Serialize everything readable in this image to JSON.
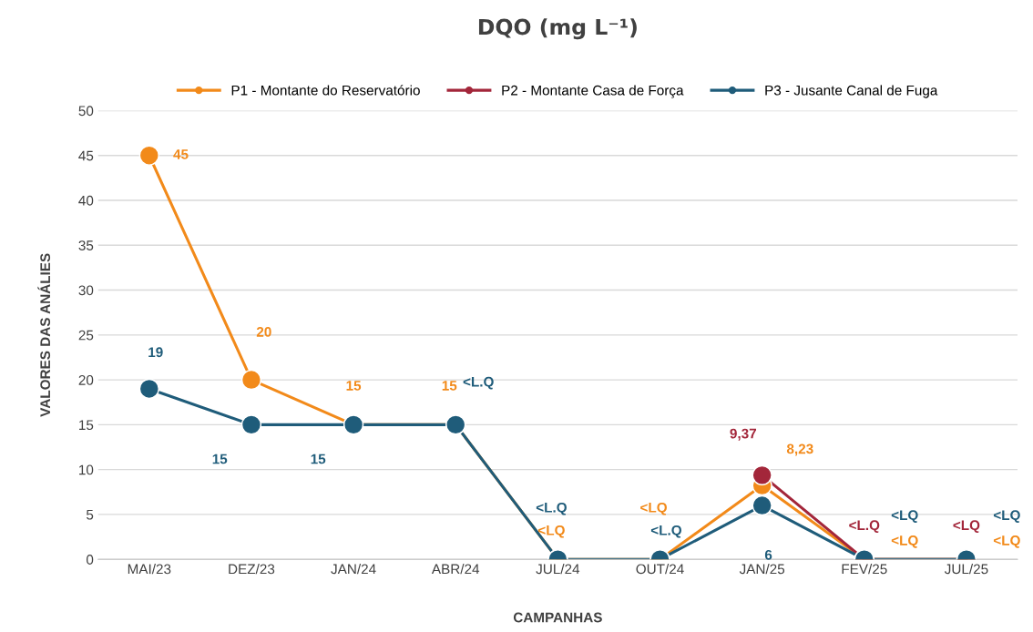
{
  "chart_data": {
    "type": "line",
    "title": "DQO (mg L⁻¹)",
    "xlabel": "CAMPANHAS",
    "ylabel": "VALORES DAS ANÁLIES",
    "categories": [
      "MAI/23",
      "DEZ/23",
      "JAN/24",
      "ABR/24",
      "JUL/24",
      "OUT/24",
      "JAN/25",
      "FEV/25",
      "JUL/25"
    ],
    "series": [
      {
        "name": "P1 - Montante do Reservatório",
        "color": "#f28a1a",
        "values": [
          45,
          20,
          15,
          15,
          0,
          0,
          8.23,
          0,
          0
        ],
        "value_labels": [
          "45",
          "20",
          "15",
          "15",
          "<LQ",
          "<LQ",
          "8,23",
          "<LQ",
          "<LQ"
        ]
      },
      {
        "name": "P2 - Montante Casa de Força",
        "color": "#a3263a",
        "values": [
          null,
          null,
          null,
          null,
          null,
          null,
          9.37,
          0,
          0
        ],
        "value_labels": [
          null,
          null,
          null,
          null,
          null,
          null,
          "9,37",
          "<L.Q",
          "<LQ"
        ]
      },
      {
        "name": "P3 - Jusante Canal de Fuga",
        "color": "#1f5c7a",
        "values": [
          19,
          15,
          15,
          15,
          0,
          0,
          6,
          0,
          0
        ],
        "value_labels": [
          "19",
          "15",
          "15",
          "<L.Q",
          "<L.Q",
          "<L.Q",
          "6",
          "<LQ",
          "<LQ"
        ]
      }
    ],
    "ylim": [
      0,
      50
    ],
    "yticks": [
      0,
      5,
      10,
      15,
      20,
      25,
      30,
      35,
      40,
      45,
      50
    ],
    "grid": "y",
    "legend": "top",
    "marker": "circle",
    "line_style": "solid"
  }
}
